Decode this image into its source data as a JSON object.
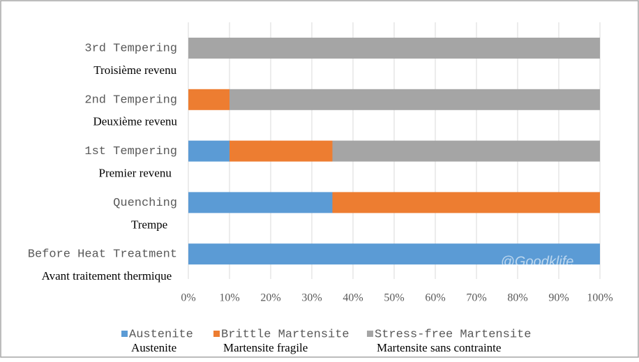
{
  "chart_data": {
    "type": "stacked-barh",
    "categories": [
      "3rd Tempering",
      "2nd Tempering",
      "1st Tempering",
      "Quenching",
      "Before Heat Treatment"
    ],
    "category_translations": [
      "Troisième revenu",
      "Deuxième revenu",
      "Premier revenu",
      "Trempe",
      "Avant traitement thermique"
    ],
    "series": [
      {
        "name": "Austenite",
        "translation": "Austenite",
        "color": "#5b9bd5",
        "values": [
          0,
          0,
          10,
          35,
          100
        ]
      },
      {
        "name": "Brittle Martensite",
        "translation": "Martensite fragile",
        "color": "#ed7d31",
        "values": [
          0,
          10,
          25,
          65,
          0
        ]
      },
      {
        "name": "Stress-free Martensite",
        "translation": "Martensite sans contrainte",
        "color": "#a5a5a5",
        "values": [
          100,
          90,
          65,
          0,
          0
        ]
      }
    ],
    "xlim": [
      0,
      100
    ],
    "xticks": [
      {
        "value": 0,
        "label": "0%"
      },
      {
        "value": 10,
        "label": "10%"
      },
      {
        "value": 20,
        "label": "20%"
      },
      {
        "value": 30,
        "label": "30%"
      },
      {
        "value": 40,
        "label": "40%"
      },
      {
        "value": 50,
        "label": "50%"
      },
      {
        "value": 60,
        "label": "60%"
      },
      {
        "value": 70,
        "label": "70%"
      },
      {
        "value": 80,
        "label": "80%"
      },
      {
        "value": 90,
        "label": "90%"
      },
      {
        "value": 100,
        "label": "100%"
      }
    ],
    "grid": true,
    "legend": "bottom",
    "watermark": "@Goodklife"
  }
}
